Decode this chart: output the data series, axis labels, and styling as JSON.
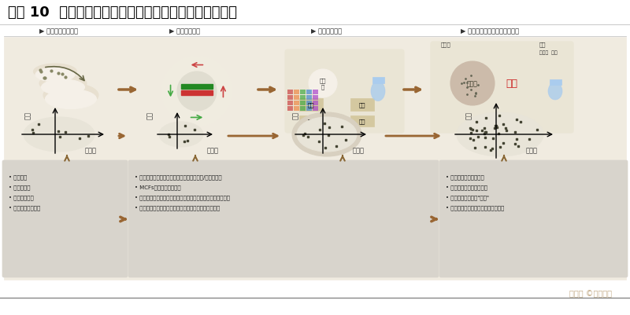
{
  "title": "图表 10  合成生物学发展使微生物细胞工厂效率大幅提升",
  "title_fontsize": 13,
  "bg_color": "#f5f0e8",
  "top_stages": [
    "▶ 非理性诱变及筛选",
    "▶ 经典代谢工程",
    "▶ 系统代谢工程",
    "▶ 全基因组水平定制化细胞工厂"
  ],
  "bottom_labels_x": [
    "基因型",
    "基因型",
    "基因型",
    "基因型"
  ],
  "bottom_labels_y": [
    "表型",
    "表型",
    "表型",
    "表型"
  ],
  "text_boxes": [
    [
      "• 操作简单",
      "• 适用范围广",
      "• 突变随机性高",
      "• 突变效率难以控制"
    ],
    [
      "• 利用不断积累的生物学知识对菌株进行理性/半理性改造",
      "• MCFs创制效率显著提升",
      "• 已有知识的局限性限制了基因组范围未知功能基因的快速挖掘",
      "• 现有技术的局限性限制了构建和测试通量的进一步提升"
    ],
    [
      "• 绕开理性设计技术瓶颈",
      "• 全基因组范围搜索基因型",
      "• 高校探索新的表型\"高地\"",
      "• 将未知功能基因的发现和改造相结合"
    ]
  ],
  "watermark": "雪头条 ©未来智库"
}
